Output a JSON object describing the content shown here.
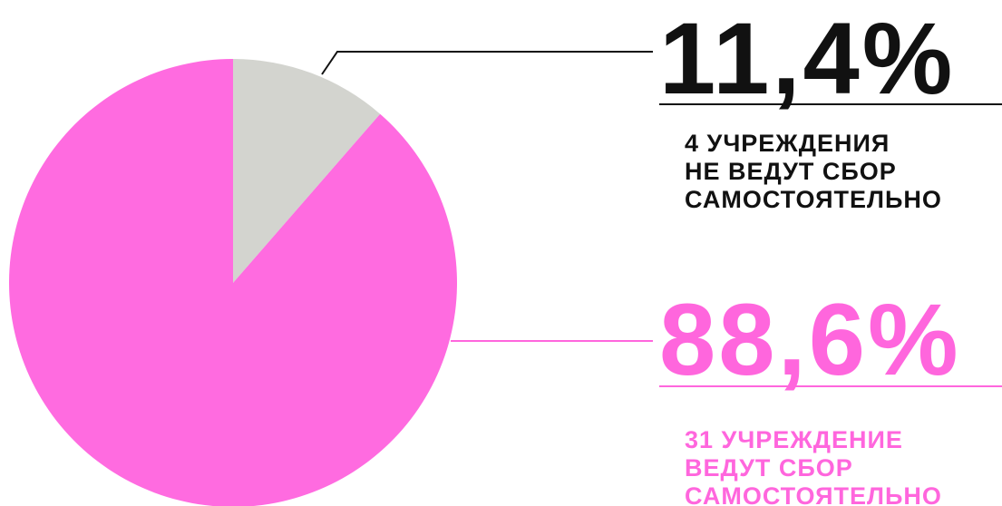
{
  "chart_data": {
    "type": "pie",
    "values": [
      11.4,
      88.6
    ],
    "value_labels": [
      "11,4%",
      "88,6%"
    ],
    "categories": [
      [
        "4 УЧРЕЖДЕНИЯ",
        "НЕ ВЕДУТ СБОР",
        "САМОСТОЯТЕЛЬНО"
      ],
      [
        "31 УЧРЕЖДЕНИЕ",
        "ВЕДУТ СБОР",
        "САМОСТОЯТЕЛЬНО"
      ]
    ],
    "colors": [
      "#d3d4cf",
      "#ff6be0"
    ],
    "label_colors": [
      "#111111",
      "#ff66dd"
    ]
  }
}
